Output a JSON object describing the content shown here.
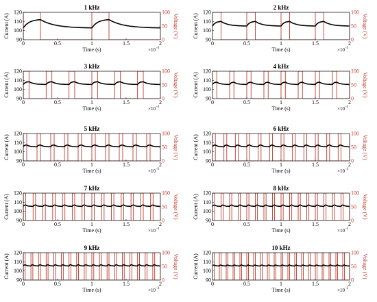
{
  "chart_data": [
    {
      "type": "line",
      "title": "1 kHz",
      "freq_khz": 1,
      "xlabel": "Time (s)",
      "ylabel": "Current (A)",
      "y2label": "Voltage (V)",
      "x_scale_label": "×10",
      "x_scale_exp": "-3",
      "xlim": [
        0,
        0.002
      ],
      "ylim": [
        90,
        120
      ],
      "y2lim": [
        0,
        100
      ],
      "x_ticks": [
        "0",
        "0.5",
        "1",
        "1.5",
        "2"
      ],
      "y_ticks": [
        "90",
        "100",
        "110",
        "120"
      ],
      "y2_ticks": [
        "0",
        "50",
        "100"
      ],
      "series": [
        {
          "kind": "current",
          "color": "#000000",
          "duty": 0.25,
          "i_min": 103,
          "i_max": 112,
          "units": "A"
        },
        {
          "kind": "voltage",
          "color": "#c0392b",
          "duty": 0.25,
          "v_high": 100,
          "v_low": 0,
          "units": "V"
        }
      ]
    },
    {
      "type": "line",
      "title": "2 kHz",
      "freq_khz": 2,
      "xlabel": "Time (s)",
      "ylabel": "Current (A)",
      "y2label": "Voltage (V)",
      "x_scale_label": "×10",
      "x_scale_exp": "-3",
      "xlim": [
        0,
        0.002
      ],
      "ylim": [
        90,
        120
      ],
      "y2lim": [
        0,
        100
      ],
      "x_ticks": [
        "0",
        "0.5",
        "1",
        "1.5",
        "2"
      ],
      "y_ticks": [
        "90",
        "100",
        "110",
        "120"
      ],
      "y2_ticks": [
        "0",
        "50",
        "100"
      ],
      "series": [
        {
          "kind": "current",
          "color": "#000000",
          "duty": 0.25,
          "i_min": 105,
          "i_max": 110,
          "units": "A"
        },
        {
          "kind": "voltage",
          "color": "#c0392b",
          "duty": 0.25,
          "v_high": 100,
          "v_low": 0,
          "units": "V"
        }
      ]
    },
    {
      "type": "line",
      "title": "3 kHz",
      "freq_khz": 3,
      "xlabel": "Time (s)",
      "ylabel": "Current (A)",
      "y2label": "Voltage (V)",
      "x_scale_label": "×10",
      "x_scale_exp": "-3",
      "xlim": [
        0,
        0.002
      ],
      "ylim": [
        90,
        120
      ],
      "y2lim": [
        0,
        100
      ],
      "x_ticks": [
        "0",
        "0.5",
        "1",
        "1.5",
        "2"
      ],
      "y_ticks": [
        "90",
        "100",
        "110",
        "120"
      ],
      "y2_ticks": [
        "0",
        "50",
        "100"
      ],
      "series": [
        {
          "kind": "current",
          "color": "#000000",
          "duty": 0.25,
          "i_min": 105.5,
          "i_max": 108.5,
          "units": "A"
        },
        {
          "kind": "voltage",
          "color": "#c0392b",
          "duty": 0.25,
          "v_high": 100,
          "v_low": 0,
          "units": "V"
        }
      ]
    },
    {
      "type": "line",
      "title": "4 kHz",
      "freq_khz": 4,
      "xlabel": "Time (s)",
      "ylabel": "Current (A)",
      "y2label": "Voltage (V)",
      "x_scale_label": "×10",
      "x_scale_exp": "-3",
      "xlim": [
        0,
        0.002
      ],
      "ylim": [
        90,
        120
      ],
      "y2lim": [
        0,
        100
      ],
      "x_ticks": [
        "0",
        "0.5",
        "1",
        "1.5",
        "2"
      ],
      "y_ticks": [
        "90",
        "100",
        "110",
        "120"
      ],
      "y2_ticks": [
        "0",
        "50",
        "100"
      ],
      "series": [
        {
          "kind": "current",
          "color": "#000000",
          "duty": 0.25,
          "i_min": 105.5,
          "i_max": 108,
          "units": "A"
        },
        {
          "kind": "voltage",
          "color": "#c0392b",
          "duty": 0.25,
          "v_high": 100,
          "v_low": 0,
          "units": "V"
        }
      ]
    },
    {
      "type": "line",
      "title": "5 kHz",
      "freq_khz": 5,
      "xlabel": "Time (s)",
      "ylabel": "Current (A)",
      "y2label": "Voltage (V)",
      "x_scale_label": "×10",
      "x_scale_exp": "-3",
      "xlim": [
        0,
        0.002
      ],
      "ylim": [
        90,
        120
      ],
      "y2lim": [
        0,
        100
      ],
      "x_ticks": [
        "0",
        "0.5",
        "1",
        "1.5",
        "2"
      ],
      "y_ticks": [
        "90",
        "100",
        "110",
        "120"
      ],
      "y2_ticks": [
        "0",
        "50",
        "100"
      ],
      "series": [
        {
          "kind": "current",
          "color": "#000000",
          "duty": 0.25,
          "i_min": 105.5,
          "i_max": 107.5,
          "units": "A"
        },
        {
          "kind": "voltage",
          "color": "#c0392b",
          "duty": 0.25,
          "v_high": 100,
          "v_low": 0,
          "units": "V"
        }
      ]
    },
    {
      "type": "line",
      "title": "6 kHz",
      "freq_khz": 6,
      "xlabel": "Time (s)",
      "ylabel": "Current (A)",
      "y2label": "Voltage (V)",
      "x_scale_label": "×10",
      "x_scale_exp": "-3",
      "xlim": [
        0,
        0.002
      ],
      "ylim": [
        90,
        120
      ],
      "y2lim": [
        0,
        100
      ],
      "x_ticks": [
        "0",
        "0.5",
        "1",
        "1.5",
        "2"
      ],
      "y_ticks": [
        "90",
        "100",
        "110",
        "120"
      ],
      "y2_ticks": [
        "0",
        "50",
        "100"
      ],
      "series": [
        {
          "kind": "current",
          "color": "#000000",
          "duty": 0.25,
          "i_min": 105.5,
          "i_max": 107.5,
          "units": "A"
        },
        {
          "kind": "voltage",
          "color": "#c0392b",
          "duty": 0.25,
          "v_high": 100,
          "v_low": 0,
          "units": "V"
        }
      ]
    },
    {
      "type": "line",
      "title": "7 kHz",
      "freq_khz": 7,
      "xlabel": "Time (s)",
      "ylabel": "Current (A)",
      "y2label": "Voltage (V)",
      "x_scale_label": "×10",
      "x_scale_exp": "-3",
      "xlim": [
        0,
        0.002
      ],
      "ylim": [
        90,
        120
      ],
      "y2lim": [
        0,
        100
      ],
      "x_ticks": [
        "0",
        "0.5",
        "1",
        "1.5",
        "2"
      ],
      "y_ticks": [
        "90",
        "100",
        "110",
        "120"
      ],
      "y2_ticks": [
        "0",
        "50",
        "100"
      ],
      "series": [
        {
          "kind": "current",
          "color": "#000000",
          "duty": 0.25,
          "i_min": 105.5,
          "i_max": 107,
          "units": "A"
        },
        {
          "kind": "voltage",
          "color": "#c0392b",
          "duty": 0.25,
          "v_high": 100,
          "v_low": 0,
          "units": "V"
        }
      ]
    },
    {
      "type": "line",
      "title": "8 kHz",
      "freq_khz": 8,
      "xlabel": "Time (s)",
      "ylabel": "Current (A)",
      "y2label": "Voltage (V)",
      "x_scale_label": "×10",
      "x_scale_exp": "-3",
      "xlim": [
        0,
        0.002
      ],
      "ylim": [
        90,
        120
      ],
      "y2lim": [
        0,
        100
      ],
      "x_ticks": [
        "0",
        "0.5",
        "1",
        "1.5",
        "2"
      ],
      "y_ticks": [
        "90",
        "100",
        "110",
        "120"
      ],
      "y2_ticks": [
        "0",
        "50",
        "100"
      ],
      "series": [
        {
          "kind": "current",
          "color": "#000000",
          "duty": 0.25,
          "i_min": 105.5,
          "i_max": 107,
          "units": "A"
        },
        {
          "kind": "voltage",
          "color": "#c0392b",
          "duty": 0.25,
          "v_high": 100,
          "v_low": 0,
          "units": "V"
        }
      ]
    },
    {
      "type": "line",
      "title": "9 kHz",
      "freq_khz": 9,
      "xlabel": "Time (s)",
      "ylabel": "Current (A)",
      "y2label": "Voltage (V)",
      "x_scale_label": "×10",
      "x_scale_exp": "-3",
      "xlim": [
        0,
        0.002
      ],
      "ylim": [
        90,
        120
      ],
      "y2lim": [
        0,
        100
      ],
      "x_ticks": [
        "0",
        "0.5",
        "1",
        "1.5",
        "2"
      ],
      "y_ticks": [
        "90",
        "100",
        "110",
        "120"
      ],
      "y2_ticks": [
        "0",
        "50",
        "100"
      ],
      "series": [
        {
          "kind": "current",
          "color": "#000000",
          "duty": 0.25,
          "i_min": 105.5,
          "i_max": 106.8,
          "units": "A"
        },
        {
          "kind": "voltage",
          "color": "#c0392b",
          "duty": 0.25,
          "v_high": 100,
          "v_low": 0,
          "units": "V"
        }
      ]
    },
    {
      "type": "line",
      "title": "10 kHz",
      "freq_khz": 10,
      "xlabel": "Time (s)",
      "ylabel": "Current (A)",
      "y2label": "Voltage (V)",
      "x_scale_label": "×10",
      "x_scale_exp": "-3",
      "xlim": [
        0,
        0.002
      ],
      "ylim": [
        90,
        120
      ],
      "y2lim": [
        0,
        100
      ],
      "x_ticks": [
        "0",
        "0.5",
        "1",
        "1.5",
        "2"
      ],
      "y_ticks": [
        "90",
        "100",
        "110",
        "120"
      ],
      "y2_ticks": [
        "0",
        "50",
        "100"
      ],
      "series": [
        {
          "kind": "current",
          "color": "#000000",
          "duty": 0.25,
          "i_min": 105.5,
          "i_max": 106.5,
          "units": "A"
        },
        {
          "kind": "voltage",
          "color": "#c0392b",
          "duty": 0.25,
          "v_high": 100,
          "v_low": 0,
          "units": "V"
        }
      ]
    }
  ]
}
